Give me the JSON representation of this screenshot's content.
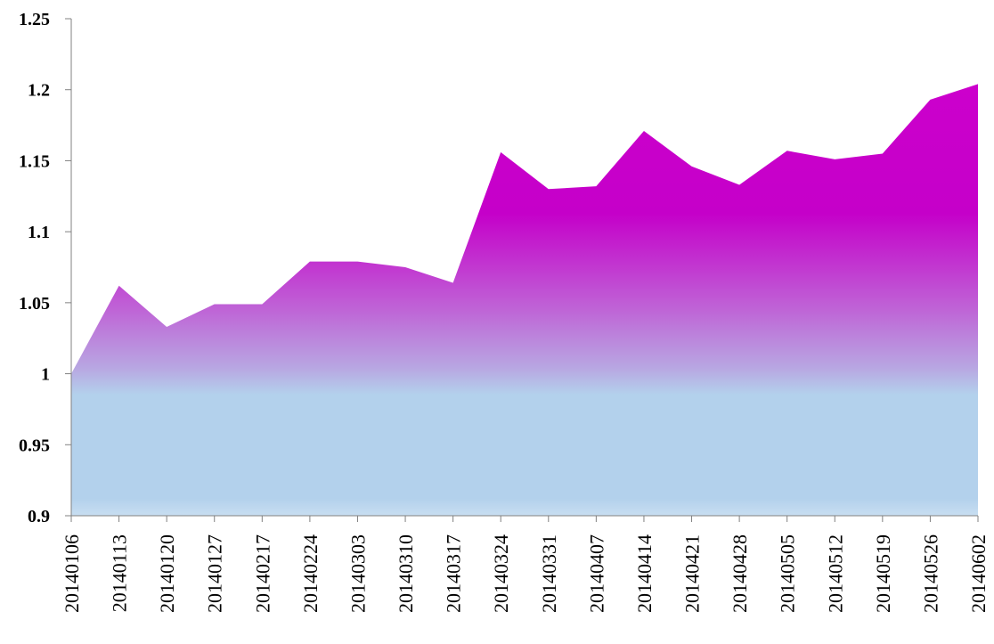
{
  "chart_data": {
    "type": "area",
    "title": "",
    "xlabel": "",
    "ylabel": "",
    "ylim": [
      0.9,
      1.25
    ],
    "yticks": [
      "0.9",
      "0.95",
      "1",
      "1.05",
      "1.1",
      "1.15",
      "1.2",
      "1.25"
    ],
    "grid": false,
    "legend": "none",
    "categories": [
      "20140106",
      "20140113",
      "20140120",
      "20140127",
      "20140217",
      "20140224",
      "20140303",
      "20140310",
      "20140317",
      "20140324",
      "20140331",
      "20140407",
      "20140414",
      "20140421",
      "20140428",
      "20140505",
      "20140512",
      "20140519",
      "20140526",
      "20140602"
    ],
    "series": [
      {
        "values": [
          1.0,
          1.062,
          1.033,
          1.049,
          1.049,
          1.079,
          1.079,
          1.075,
          1.064,
          1.156,
          1.13,
          1.132,
          1.171,
          1.146,
          1.133,
          1.157,
          1.151,
          1.155,
          1.193,
          1.204
        ]
      }
    ],
    "colors": {
      "top": "#cc00cc",
      "bottom": "#b3d1ec",
      "axis": "#808080"
    }
  }
}
